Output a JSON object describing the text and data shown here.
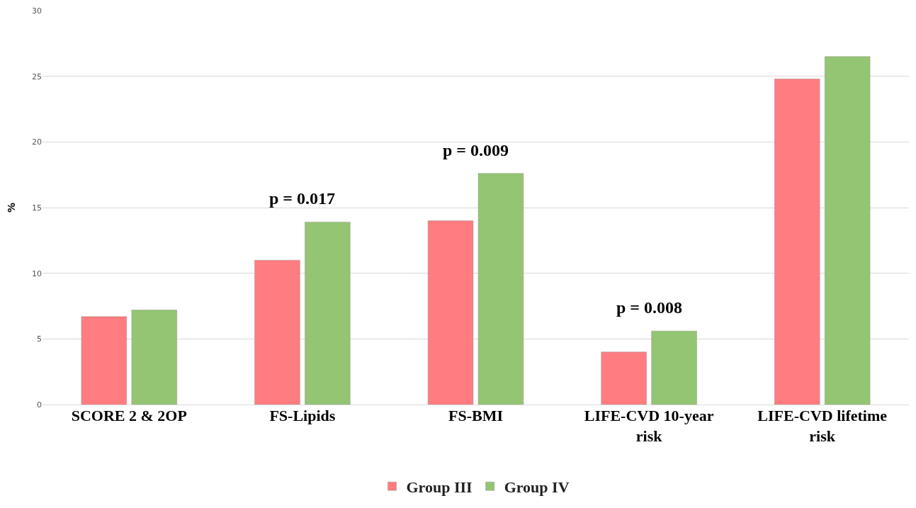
{
  "chart_data": {
    "type": "bar",
    "ylabel": "%",
    "categories": [
      "SCORE 2 & 2OP",
      "FS-Lipids",
      "FS-BMI",
      "LIFE-CVD 10-year risk",
      "LIFE-CVD lifetime risk"
    ],
    "series": [
      {
        "name": "Group III",
        "color": "#ff7c80",
        "values": [
          6.7,
          11.0,
          14.0,
          4.0,
          24.8
        ]
      },
      {
        "name": "Group IV",
        "color": "#93c572",
        "values": [
          7.2,
          13.9,
          17.6,
          5.6,
          26.5
        ]
      }
    ],
    "ylim": [
      0,
      30
    ],
    "yticks": [
      0,
      5,
      10,
      15,
      20,
      25,
      30
    ],
    "grid": "y",
    "legend": "bottom",
    "annotations": [
      {
        "text": "p = 0.017",
        "x": "FS-Lipids",
        "y": 13.9
      },
      {
        "text": "p = 0.009",
        "x": "FS-BMI",
        "y": 17.6
      },
      {
        "text": "p = 0.008",
        "x": "LIFE-CVD 10-year risk",
        "y": 5.6
      }
    ]
  }
}
